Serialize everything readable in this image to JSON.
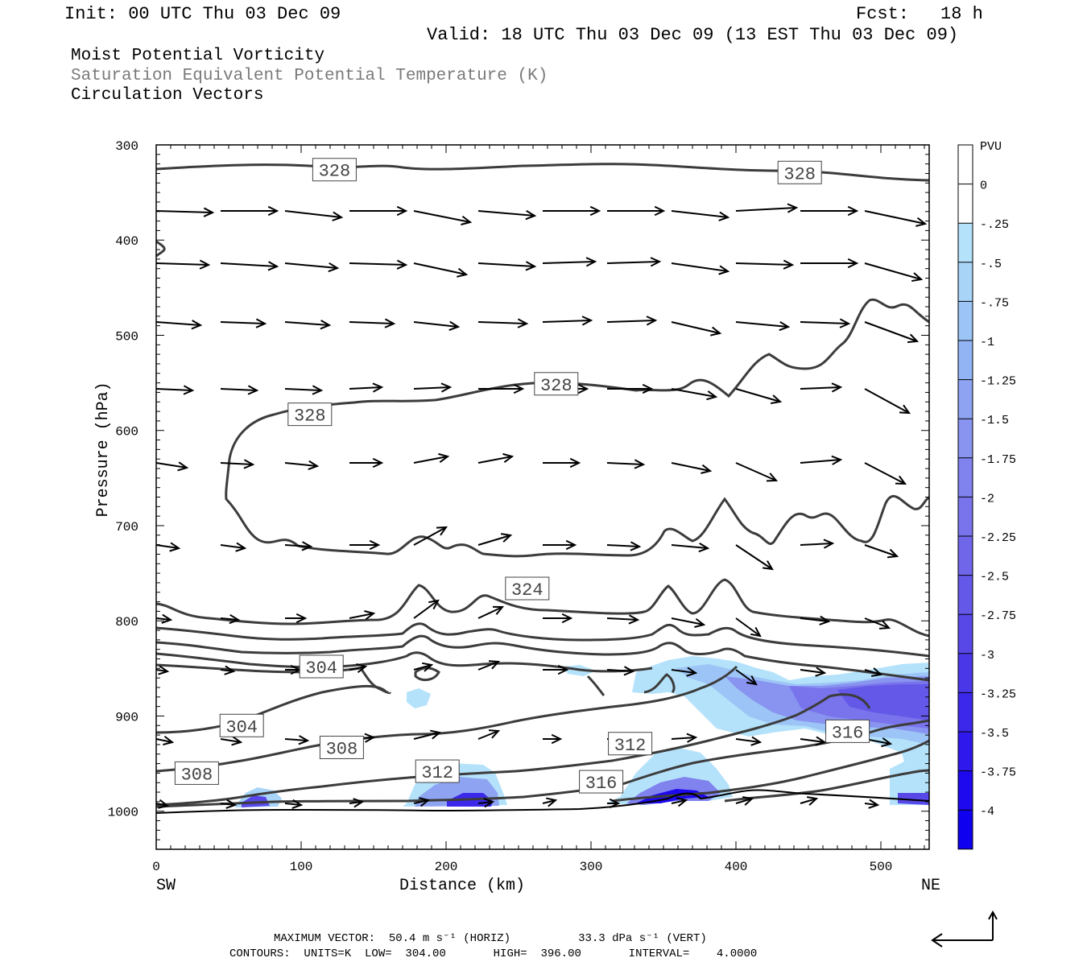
{
  "header": {
    "init": "Init: 00 UTC Thu 03 Dec 09",
    "fcst_label": "Fcst:",
    "fcst_value": "18 h",
    "valid": "Valid: 18 UTC Thu 03 Dec 09 (13 EST Thu 03 Dec 09)"
  },
  "fields": {
    "field1": "Moist Potential Vorticity",
    "field2": "Saturation Equivalent Potential Temperature (K)",
    "field3": "Circulation Vectors"
  },
  "colors": {
    "contour": "#3c3c3c",
    "vector": "#000000",
    "label_text": "#444444"
  },
  "chart_data": {
    "type": "cross-section",
    "xlabel": "Distance (km)",
    "ylabel": "Pressure (hPa)",
    "xlim": [
      0,
      533
    ],
    "ylim": [
      1040,
      300
    ],
    "x_ticks": [
      0,
      100,
      200,
      300,
      400,
      500
    ],
    "y_ticks": [
      300,
      400,
      500,
      600,
      700,
      800,
      900,
      1000
    ],
    "left_end": "SW",
    "right_end": "NE",
    "colorbar": {
      "unit": "PVU",
      "levels": [
        "0",
        "-.25",
        "-.5",
        "-.75",
        "-1",
        "-1.25",
        "-1.5",
        "-1.75",
        "-2",
        "-2.25",
        "-2.5",
        "-2.75",
        "-3",
        "-3.25",
        "-3.5",
        "-3.75",
        "-4"
      ],
      "colors": [
        "#ffffff",
        "#ffffff",
        "#b4e2fa",
        "#a8d4f8",
        "#9dc4f6",
        "#93b4f4",
        "#8ea4f2",
        "#8894f0",
        "#8082ee",
        "#7a74ec",
        "#7066ea",
        "#6458e8",
        "#5848e8",
        "#4a38e8",
        "#3c28ea",
        "#2e18ec",
        "#1e08ee",
        "#1000f0"
      ]
    },
    "contour_labels": [
      {
        "text": "328",
        "x": 123,
        "p": 326
      },
      {
        "text": "328",
        "x": 444,
        "p": 329
      },
      {
        "text": "328",
        "x": 276,
        "p": 551
      },
      {
        "text": "328",
        "x": 106,
        "p": 583
      },
      {
        "text": "324",
        "x": 256,
        "p": 766
      },
      {
        "text": "304",
        "x": 114,
        "p": 848
      },
      {
        "text": "304",
        "x": 59,
        "p": 910
      },
      {
        "text": "308",
        "x": 128,
        "p": 933
      },
      {
        "text": "308",
        "x": 28,
        "p": 960
      },
      {
        "text": "312",
        "x": 194,
        "p": 958
      },
      {
        "text": "312",
        "x": 327,
        "p": 929
      },
      {
        "text": "316",
        "x": 307,
        "p": 969
      },
      {
        "text": "316",
        "x": 477,
        "p": 916
      }
    ]
  },
  "footer": {
    "max_vector": "MAXIMUM VECTOR:  50.4 m s⁻¹ (HORIZ)          33.3 dPa s⁻¹ (VERT)",
    "contours": "CONTOURS:  UNITS=K  LOW=  304.00       HIGH=  396.00       INTERVAL=    4.0000"
  }
}
